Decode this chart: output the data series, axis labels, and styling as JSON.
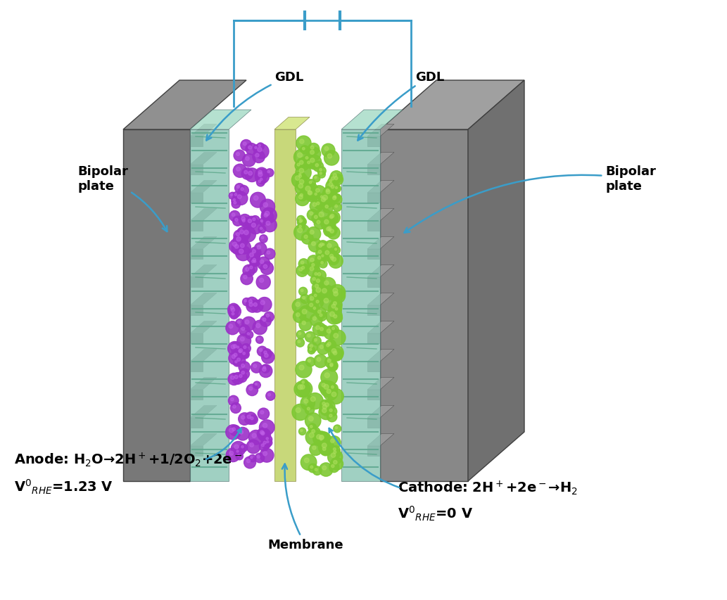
{
  "bg_color": "#ffffff",
  "arrow_color": "#3a9dc9",
  "text_color": "#000000",
  "labels": {
    "gdl_left": "GDL",
    "gdl_right": "GDL",
    "bipolar_left": "Bipolar\nplate",
    "bipolar_right": "Bipolar\nplate",
    "membrane": "Membrane",
    "anode_line1": "Anode: H$_2$O→2H$^+$+1/2O$_2$+2e$^-$",
    "anode_line2": "V$^0$$_{RHE}$=1.23 V",
    "cathode_line1": "Cathode: 2H$^+$+2e$^-$→H$_2$",
    "cathode_line2": "V$^0$$_{RHE}$=0 V"
  },
  "font_size_labels": 13,
  "font_size_equations": 13,
  "bipolar_color_left": "#808080",
  "bipolar_color_right": "#909090",
  "gdl_color": "#7ec8c0",
  "membrane_color": "#c8d87a",
  "anode_color": "#9b30c8",
  "cathode_color": "#7dc832",
  "circuit_color": "#3a9dc9",
  "figsize": [
    10.33,
    8.54
  ],
  "dpi": 100
}
